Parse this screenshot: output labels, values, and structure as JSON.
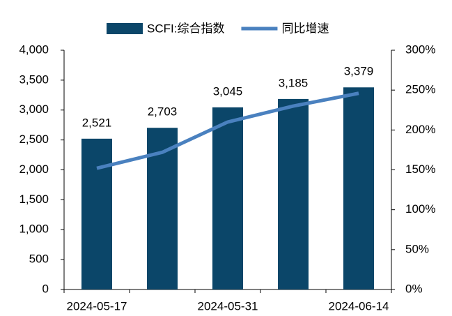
{
  "chart_data": {
    "type": "bar",
    "categories": [
      "2024-05-17",
      null,
      "2024-05-31",
      null,
      "2024-06-14"
    ],
    "series": [
      {
        "name": "SCFI:综合指数",
        "color": "#0b4669",
        "values": [
          2521,
          2703,
          3045,
          3185,
          3379
        ],
        "value_labels": [
          "2,521",
          "2,703",
          "3,045",
          "3,185",
          "3,379"
        ]
      },
      {
        "name": "同比增速",
        "type": "line",
        "axis": "y2",
        "color": "#4a81bf",
        "values": [
          152,
          172,
          210,
          230,
          246
        ]
      }
    ],
    "ylim": [
      0,
      4000
    ],
    "yticks": [
      0,
      500,
      {
        "value": 1000,
        "label": "1,000"
      },
      {
        "value": 1500,
        "label": "1,500"
      },
      {
        "value": 2000,
        "label": "2,000"
      },
      {
        "value": 2500,
        "label": "2,500"
      },
      {
        "value": 3000,
        "label": "3,000"
      },
      {
        "value": 3500,
        "label": "3,500"
      },
      {
        "value": 4000,
        "label": "4,000"
      }
    ],
    "y2lim": [
      0,
      300
    ],
    "y2ticks": [
      {
        "value": 0,
        "label": "0%"
      },
      {
        "value": 50,
        "label": "50%"
      },
      {
        "value": 100,
        "label": "100%"
      },
      {
        "value": 150,
        "label": "150%"
      },
      {
        "value": 200,
        "label": "200%"
      },
      {
        "value": 250,
        "label": "250%"
      },
      {
        "value": 300,
        "label": "300%"
      }
    ],
    "legend": "top",
    "grid": false
  }
}
